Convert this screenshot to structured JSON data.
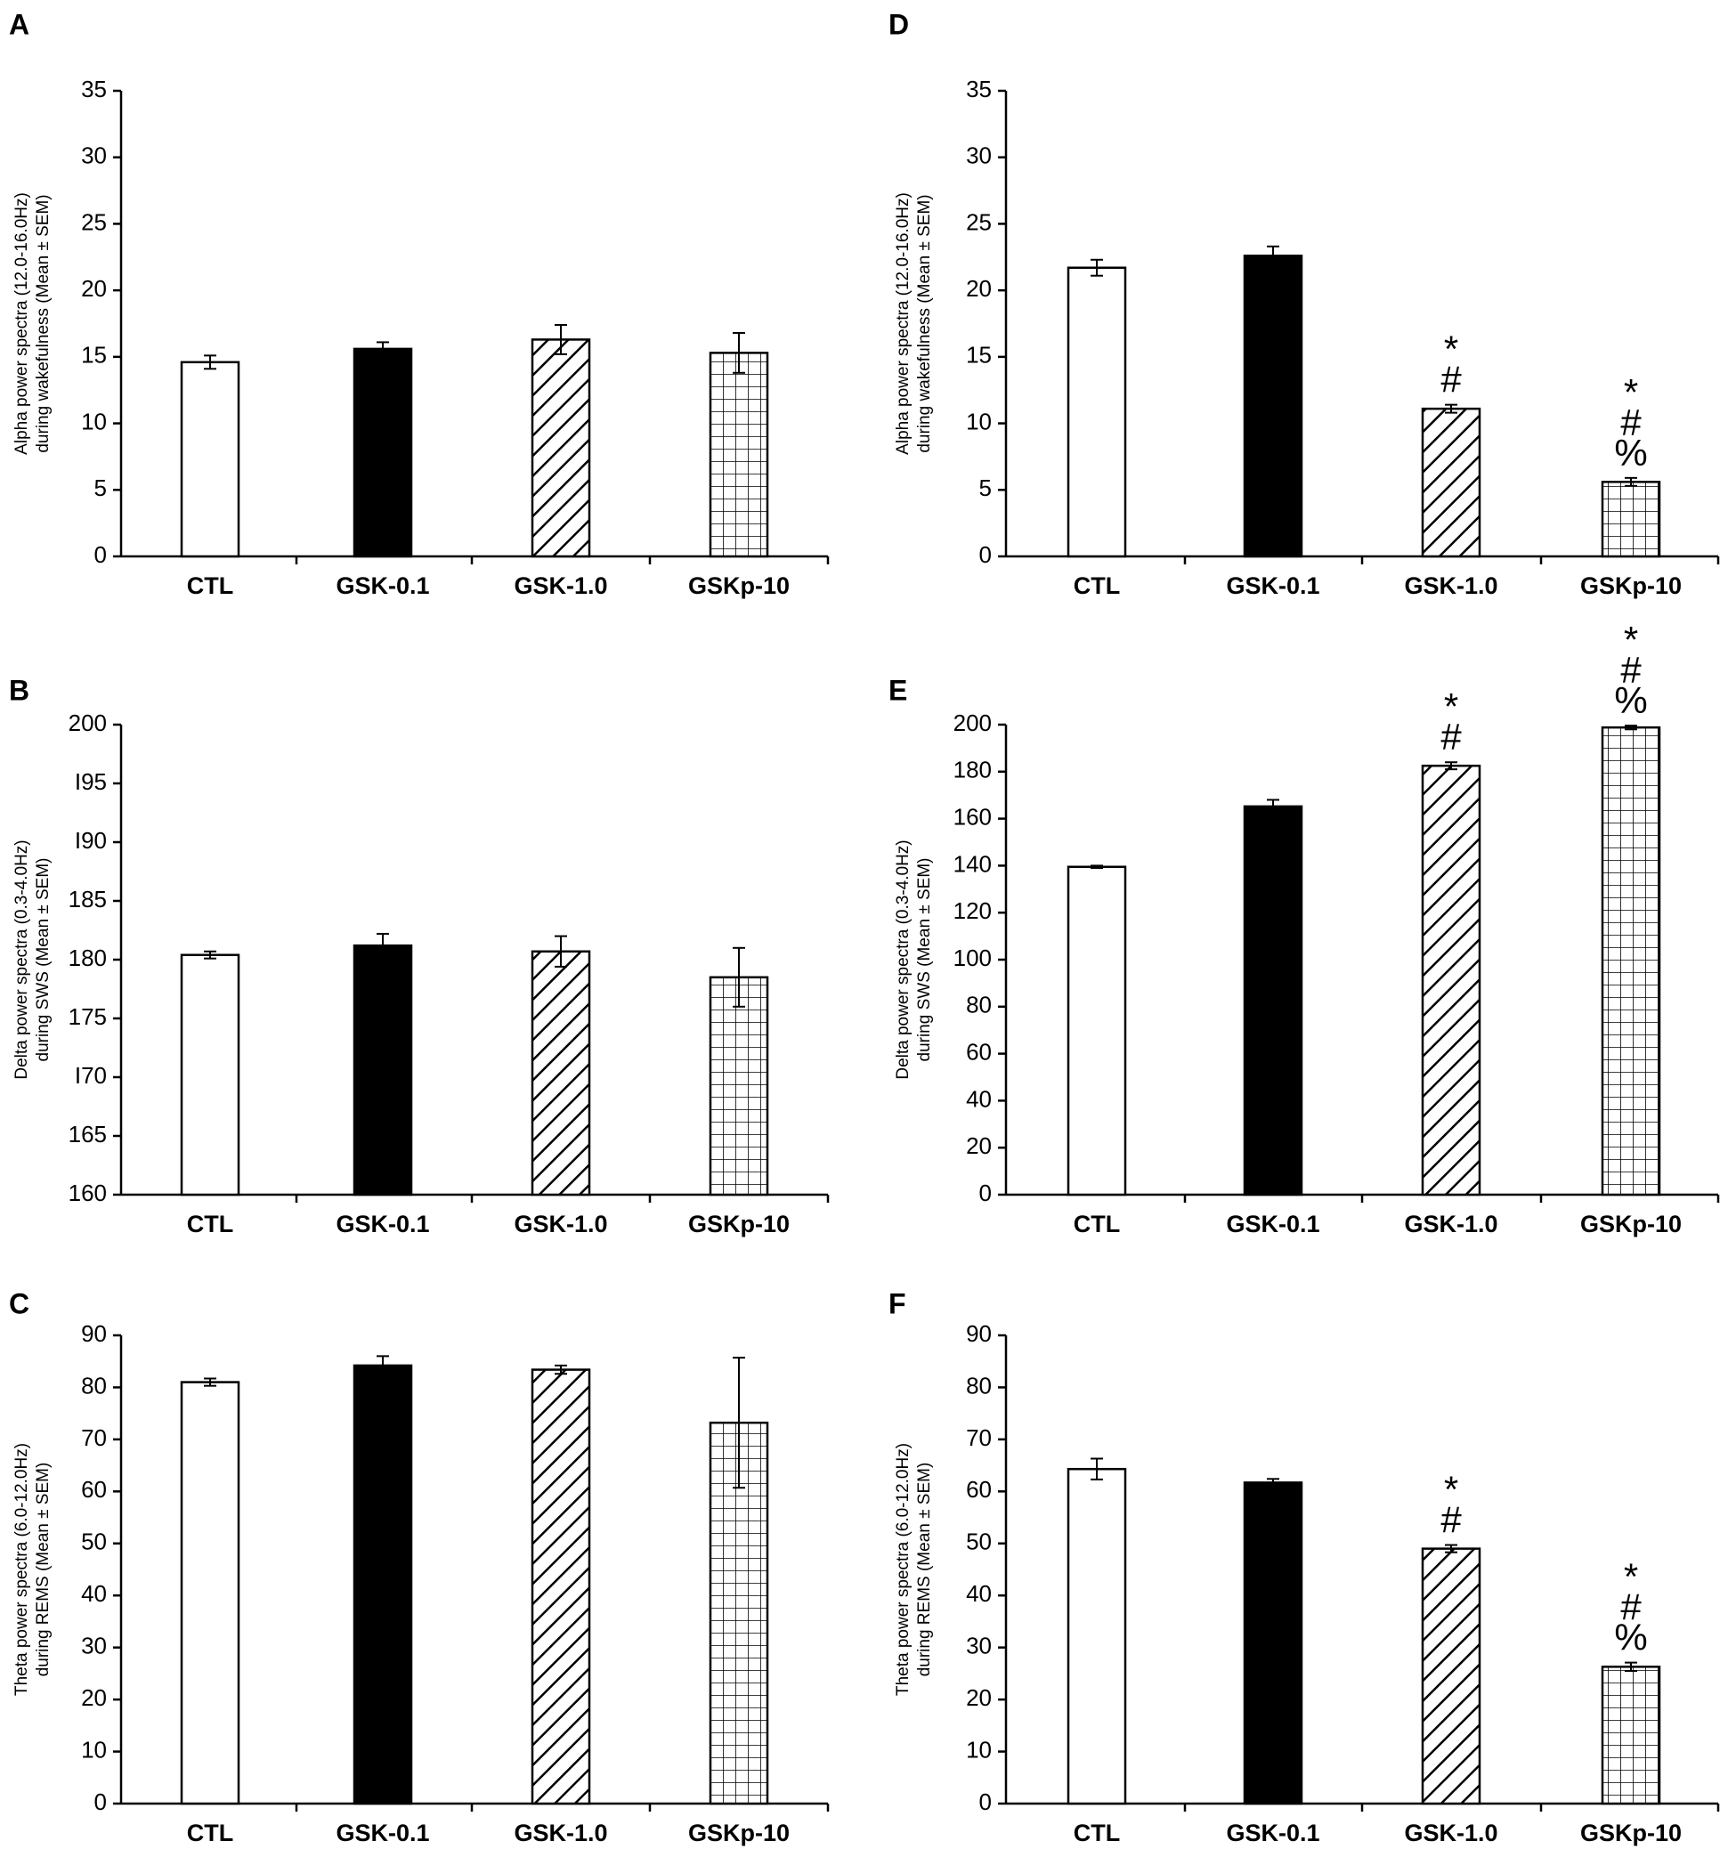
{
  "chart_data": [
    {
      "panel": "A",
      "type": "bar",
      "categories": [
        "CTL",
        "GSK-0.1",
        "GSK-1.0",
        "GSKp-10"
      ],
      "values": [
        14.6,
        15.6,
        16.3,
        15.3
      ],
      "errors": [
        0.5,
        0.5,
        1.1,
        1.5
      ],
      "patterns": [
        "white",
        "black",
        "hatch",
        "grid"
      ],
      "ylabel_lines": [
        "Alpha power spectra (12.0-16.0Hz)",
        "during wakefulness (Mean ± SEM)"
      ],
      "ylim": [
        0,
        35
      ],
      "yticks": [
        "0",
        "5",
        "10",
        "15",
        "20",
        "25",
        "30",
        "35"
      ],
      "annotations": [
        [],
        [],
        [],
        []
      ]
    },
    {
      "panel": "B",
      "type": "bar",
      "categories": [
        "CTL",
        "GSK-0.1",
        "GSK-1.0",
        "GSKp-10"
      ],
      "values": [
        180.4,
        181.2,
        180.7,
        178.5
      ],
      "errors": [
        0.3,
        1.0,
        1.3,
        2.5
      ],
      "patterns": [
        "white",
        "black",
        "hatch",
        "grid"
      ],
      "ylabel_lines": [
        "Delta power spectra (0.3-4.0Hz)",
        "during SWS (Mean ± SEM)"
      ],
      "ylim": [
        160,
        200
      ],
      "yticks": [
        "160",
        "165",
        "I70",
        "175",
        "180",
        "185",
        "I90",
        "I95",
        "200"
      ],
      "annotations": [
        [],
        [],
        [],
        []
      ]
    },
    {
      "panel": "C",
      "type": "bar",
      "categories": [
        "CTL",
        "GSK-0.1",
        "GSK-1.0",
        "GSKp-10"
      ],
      "values": [
        81.0,
        84.2,
        83.4,
        73.2
      ],
      "errors": [
        0.7,
        1.8,
        0.8,
        12.5
      ],
      "patterns": [
        "white",
        "black",
        "hatch",
        "grid"
      ],
      "ylabel_lines": [
        "Theta power spectra (6.0-12.0Hz)",
        "during REMS  (Mean ± SEM)"
      ],
      "ylim": [
        0,
        90
      ],
      "yticks": [
        "0",
        "10",
        "20",
        "30",
        "40",
        "50",
        "60",
        "70",
        "80",
        "90"
      ],
      "annotations": [
        [],
        [],
        [],
        []
      ]
    },
    {
      "panel": "D",
      "type": "bar",
      "categories": [
        "CTL",
        "GSK-0.1",
        "GSK-1.0",
        "GSKp-10"
      ],
      "values": [
        21.7,
        22.6,
        11.1,
        5.6
      ],
      "errors": [
        0.6,
        0.7,
        0.3,
        0.3
      ],
      "patterns": [
        "white",
        "black",
        "hatch",
        "grid"
      ],
      "ylabel_lines": [
        "Alpha power spectra (12.0-16.0Hz)",
        "during wakefulness (Mean ± SEM)"
      ],
      "ylim": [
        0,
        35
      ],
      "yticks": [
        "0",
        "5",
        "10",
        "15",
        "20",
        "25",
        "30",
        "35"
      ],
      "annotations": [
        [],
        [],
        [
          "*",
          "#"
        ],
        [
          "*",
          "#",
          "%"
        ]
      ]
    },
    {
      "panel": "E",
      "type": "bar",
      "categories": [
        "CTL",
        "GSK-0.1",
        "GSK-1.0",
        "GSKp-10"
      ],
      "values": [
        139.5,
        165.2,
        182.5,
        198.8
      ],
      "errors": [
        0.5,
        2.8,
        1.5,
        0.8
      ],
      "patterns": [
        "white",
        "black",
        "hatch",
        "grid"
      ],
      "ylabel_lines": [
        "Delta power spectra (0.3-4.0Hz)",
        "during SWS (Mean ± SEM)"
      ],
      "ylim": [
        0,
        200
      ],
      "yticks": [
        "0",
        "20",
        "40",
        "60",
        "80",
        "100",
        "120",
        "140",
        "160",
        "180",
        "200"
      ],
      "annotations": [
        [],
        [],
        [
          "*",
          "#"
        ],
        [
          "*",
          "#",
          "%"
        ]
      ]
    },
    {
      "panel": "F",
      "type": "bar",
      "categories": [
        "CTL",
        "GSK-0.1",
        "GSK-1.0",
        "GSKp-10"
      ],
      "values": [
        64.3,
        61.7,
        49.0,
        26.3
      ],
      "errors": [
        2.0,
        0.7,
        0.7,
        0.8
      ],
      "patterns": [
        "white",
        "black",
        "hatch",
        "grid"
      ],
      "ylabel_lines": [
        "Theta power spectra (6.0-12.0Hz)",
        "during REMS  (Mean ± SEM)"
      ],
      "ylim": [
        0,
        90
      ],
      "yticks": [
        "0",
        "10",
        "20",
        "30",
        "40",
        "50",
        "60",
        "70",
        "80",
        "90"
      ],
      "annotations": [
        [],
        [],
        [
          "*",
          "#"
        ],
        [
          "*",
          "#",
          "%"
        ]
      ]
    }
  ]
}
